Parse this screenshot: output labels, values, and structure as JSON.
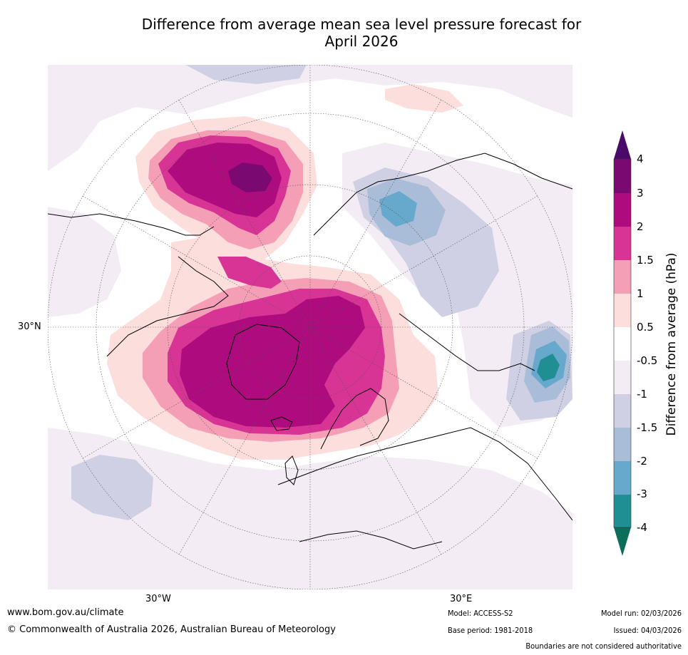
{
  "title_line1": "Difference from average mean sea level pressure forecast for",
  "title_line2": "April 2026",
  "axis_labels": {
    "lat_30n": "30°N",
    "lon_30w": "30°W",
    "lon_30e": "30°E"
  },
  "colorbar": {
    "title": "Difference from average (hPa)",
    "ticks": [
      "4",
      "3",
      "2",
      "1.5",
      "1",
      "0.5",
      "-0.5",
      "-1",
      "-1.5",
      "-2",
      "-3",
      "-4"
    ],
    "colors": [
      "#4a0a6a",
      "#7a0a72",
      "#ae0b7f",
      "#d83495",
      "#f59fb7",
      "#fcdedd",
      "#ffffff",
      "#f3ecf4",
      "#cfd0e3",
      "#a9bdd8",
      "#67a8cd",
      "#1f8f93",
      "#0b6e5a"
    ]
  },
  "footer": {
    "website": "www.bom.gov.au/climate",
    "copyright": "© Commonwealth of Australia 2026, Australian Bureau of Meteorology",
    "model": "Model: ACCESS-S2",
    "base_period": "Base period: 1981-2018",
    "model_run": "Model run: 02/03/2026",
    "issued": "Issued: 04/03/2026",
    "boundaries_note": "Boundaries are not considered authoritative"
  }
}
